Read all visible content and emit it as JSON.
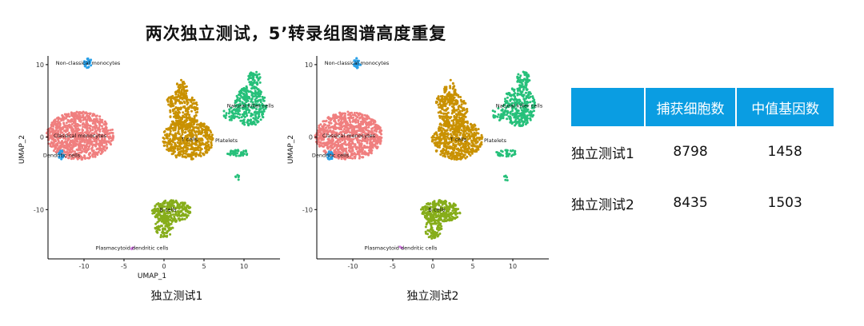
{
  "title": "两次独立测试，5’转录组图谱高度重复",
  "colors": {
    "classical_monocytes": "#f07f7f",
    "t_cells": "#c99100",
    "nk_cells": "#26c07a",
    "b_cells": "#86ad1a",
    "dendritic": "#2aa0e8",
    "platelets": "#1fa7c9",
    "plasmacytoid": "#d67be6",
    "header": "#0a9de2"
  },
  "chart_data": [
    {
      "type": "scatter",
      "caption": "独立测试1",
      "xlabel": "UMAP_1",
      "ylabel": "UMAP_2",
      "xlim": [
        -14.5,
        14.5
      ],
      "ylim": [
        -16.8,
        11.2
      ],
      "xticks": [
        -10,
        -5,
        0,
        5,
        10
      ],
      "yticks": [
        -10,
        0,
        10
      ],
      "grid": false,
      "legend": "none",
      "clusters": [
        {
          "label": "Classical monocytes",
          "color_key": "classical_monocytes",
          "label_pos": [
            -10.5,
            0.2
          ],
          "blobs": [
            [
              -10.5,
              0.2,
              4.2,
              3.3,
              900
            ]
          ]
        },
        {
          "label": "T cells",
          "color_key": "t_cells",
          "label_pos": [
            3.2,
            -0.3
          ],
          "blobs": [
            [
              3.0,
              -0.3,
              3.2,
              2.8,
              520
            ],
            [
              2.5,
              3.5,
              1.8,
              2.5,
              200
            ],
            [
              2.2,
              6.3,
              0.8,
              1.6,
              60
            ],
            [
              1.0,
              5.0,
              0.6,
              0.8,
              30
            ]
          ]
        },
        {
          "label": "Natural killer cells",
          "color_key": "nk_cells",
          "label_pos": [
            10.8,
            4.3
          ],
          "blobs": [
            [
              10.8,
              4.3,
              2.0,
              2.8,
              280
            ],
            [
              11.3,
              8.0,
              0.8,
              1.1,
              60
            ],
            [
              8.2,
              3.2,
              0.8,
              0.9,
              30
            ]
          ]
        },
        {
          "label": "Platelets",
          "color_key": "nk_cells",
          "label_pos": [
            7.8,
            -0.5
          ],
          "blobs": [
            [
              9.2,
              -2.2,
              1.4,
              0.5,
              40
            ],
            [
              9.2,
              -5.6,
              0.3,
              0.4,
              6
            ]
          ]
        },
        {
          "label": "B cells",
          "color_key": "b_cells",
          "label_pos": [
            0.5,
            -10.0
          ],
          "blobs": [
            [
              1.0,
              -10.2,
              2.5,
              1.5,
              260
            ],
            [
              0.0,
              -12.5,
              1.1,
              1.5,
              90
            ]
          ]
        },
        {
          "label": "Non-classical monocytes",
          "color_key": "dendritic",
          "label_pos": [
            -9.5,
            10.2
          ],
          "blobs": [
            [
              -9.5,
              10.2,
              0.5,
              0.7,
              30
            ]
          ]
        },
        {
          "label": "Dendritic cells",
          "color_key": "dendritic",
          "label_pos": [
            -12.8,
            -2.5
          ],
          "blobs": [
            [
              -12.8,
              -2.5,
              0.4,
              0.7,
              18
            ]
          ]
        },
        {
          "label": "Plasmacytoid dendritic cells",
          "color_key": "plasmacytoid",
          "label_pos": [
            -4.0,
            -15.3
          ],
          "blobs": [
            [
              -4.0,
              -15.3,
              0.2,
              0.2,
              3
            ]
          ]
        }
      ]
    },
    {
      "type": "scatter",
      "caption": "独立测试2",
      "xlabel": "",
      "ylabel": "UMAP_2",
      "xlim": [
        -14.5,
        14.5
      ],
      "ylim": [
        -16.8,
        11.2
      ],
      "xticks": [
        -10,
        -5,
        0,
        5,
        10
      ],
      "yticks": [
        -10,
        0,
        10
      ],
      "grid": false,
      "legend": "none",
      "clusters": [
        {
          "label": "Classical monocytes",
          "color_key": "classical_monocytes",
          "label_pos": [
            -10.5,
            0.2
          ],
          "blobs": [
            [
              -10.5,
              0.2,
              4.2,
              3.3,
              900
            ]
          ]
        },
        {
          "label": "T cells",
          "color_key": "t_cells",
          "label_pos": [
            3.2,
            -0.3
          ],
          "blobs": [
            [
              3.0,
              -0.3,
              3.2,
              2.8,
              520
            ],
            [
              2.5,
              3.5,
              1.8,
              2.5,
              200
            ],
            [
              2.2,
              6.3,
              0.8,
              1.6,
              60
            ],
            [
              1.0,
              5.0,
              0.6,
              0.8,
              30
            ]
          ]
        },
        {
          "label": "Natural killer cells",
          "color_key": "nk_cells",
          "label_pos": [
            10.8,
            4.3
          ],
          "blobs": [
            [
              10.8,
              4.3,
              2.0,
              2.8,
              280
            ],
            [
              11.3,
              8.0,
              0.8,
              1.1,
              60
            ],
            [
              8.2,
              3.2,
              0.8,
              0.9,
              30
            ]
          ]
        },
        {
          "label": "Platelets",
          "color_key": "nk_cells",
          "label_pos": [
            7.8,
            -0.5
          ],
          "blobs": [
            [
              9.2,
              -2.2,
              1.4,
              0.5,
              40
            ],
            [
              9.2,
              -5.6,
              0.3,
              0.4,
              6
            ]
          ]
        },
        {
          "label": "B cells",
          "color_key": "b_cells",
          "label_pos": [
            0.5,
            -10.0
          ],
          "blobs": [
            [
              1.0,
              -10.2,
              2.5,
              1.5,
              260
            ],
            [
              0.0,
              -12.5,
              1.1,
              1.5,
              90
            ]
          ]
        },
        {
          "label": "Non-classical monocytes",
          "color_key": "dendritic",
          "label_pos": [
            -9.5,
            10.2
          ],
          "blobs": [
            [
              -9.5,
              10.2,
              0.5,
              0.7,
              30
            ]
          ]
        },
        {
          "label": "Dendritic cells",
          "color_key": "dendritic",
          "label_pos": [
            -12.8,
            -2.5
          ],
          "blobs": [
            [
              -12.8,
              -2.5,
              0.4,
              0.7,
              18
            ]
          ]
        },
        {
          "label": "Plasmacytoid dendritic cells",
          "color_key": "plasmacytoid",
          "label_pos": [
            -4.0,
            -15.3
          ],
          "blobs": [
            [
              -4.0,
              -15.3,
              0.2,
              0.2,
              3
            ]
          ]
        }
      ]
    }
  ],
  "table": {
    "headers": [
      "",
      "捕获细胞数",
      "中值基因数"
    ],
    "rows": [
      [
        "独立测试1",
        "8798",
        "1458"
      ],
      [
        "独立测试2",
        "8435",
        "1503"
      ]
    ]
  }
}
